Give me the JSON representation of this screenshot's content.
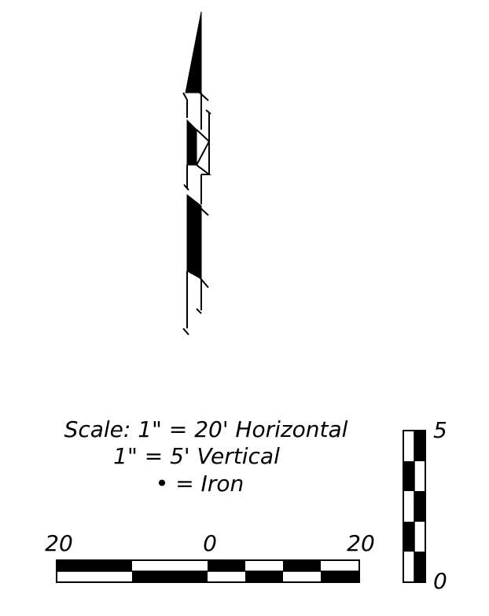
{
  "legend": {
    "scale_horizontal": "Scale:  1\" = 20' Horizontal",
    "scale_vertical": "1\" = 5' Vertical",
    "iron_symbol": "• = Iron"
  },
  "horizontal_scale_bar": {
    "left_label": "20",
    "center_label": "0",
    "right_label": "20"
  },
  "vertical_scale_bar": {
    "top_label": "5",
    "bottom_label": "0"
  },
  "colors": {
    "ink": "#000000",
    "paper": "#ffffff"
  }
}
